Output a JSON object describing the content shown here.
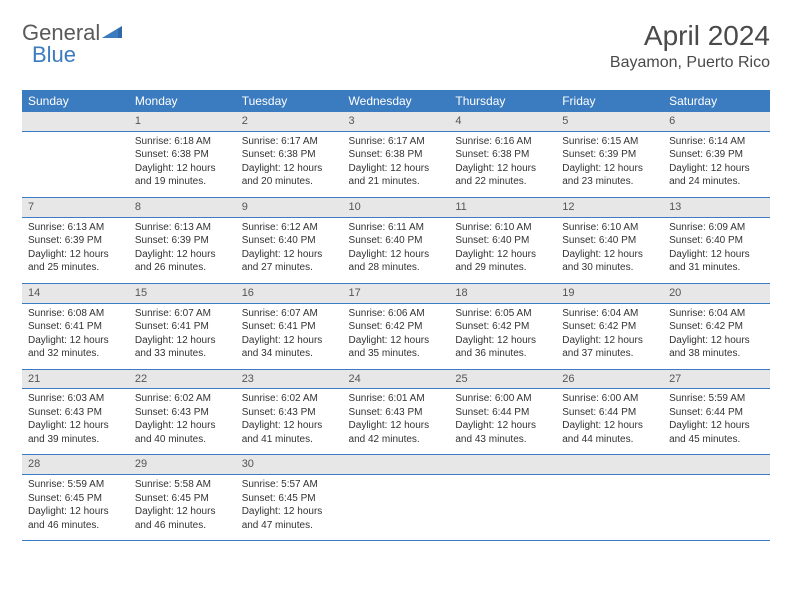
{
  "logo": {
    "text1": "General",
    "text2": "Blue"
  },
  "title": "April 2024",
  "location": "Bayamon, Puerto Rico",
  "colors": {
    "header_bg": "#3b7bbf",
    "header_text": "#ffffff",
    "daynum_bg": "#e7e7e7",
    "border": "#3b7bbf",
    "text": "#333333",
    "logo_gray": "#5a5a5a",
    "logo_blue": "#3b7bbf"
  },
  "weekdays": [
    "Sunday",
    "Monday",
    "Tuesday",
    "Wednesday",
    "Thursday",
    "Friday",
    "Saturday"
  ],
  "weeks": [
    {
      "nums": [
        "",
        "1",
        "2",
        "3",
        "4",
        "5",
        "6"
      ],
      "cells": [
        [],
        [
          "Sunrise: 6:18 AM",
          "Sunset: 6:38 PM",
          "Daylight: 12 hours and 19 minutes."
        ],
        [
          "Sunrise: 6:17 AM",
          "Sunset: 6:38 PM",
          "Daylight: 12 hours and 20 minutes."
        ],
        [
          "Sunrise: 6:17 AM",
          "Sunset: 6:38 PM",
          "Daylight: 12 hours and 21 minutes."
        ],
        [
          "Sunrise: 6:16 AM",
          "Sunset: 6:38 PM",
          "Daylight: 12 hours and 22 minutes."
        ],
        [
          "Sunrise: 6:15 AM",
          "Sunset: 6:39 PM",
          "Daylight: 12 hours and 23 minutes."
        ],
        [
          "Sunrise: 6:14 AM",
          "Sunset: 6:39 PM",
          "Daylight: 12 hours and 24 minutes."
        ]
      ]
    },
    {
      "nums": [
        "7",
        "8",
        "9",
        "10",
        "11",
        "12",
        "13"
      ],
      "cells": [
        [
          "Sunrise: 6:13 AM",
          "Sunset: 6:39 PM",
          "Daylight: 12 hours and 25 minutes."
        ],
        [
          "Sunrise: 6:13 AM",
          "Sunset: 6:39 PM",
          "Daylight: 12 hours and 26 minutes."
        ],
        [
          "Sunrise: 6:12 AM",
          "Sunset: 6:40 PM",
          "Daylight: 12 hours and 27 minutes."
        ],
        [
          "Sunrise: 6:11 AM",
          "Sunset: 6:40 PM",
          "Daylight: 12 hours and 28 minutes."
        ],
        [
          "Sunrise: 6:10 AM",
          "Sunset: 6:40 PM",
          "Daylight: 12 hours and 29 minutes."
        ],
        [
          "Sunrise: 6:10 AM",
          "Sunset: 6:40 PM",
          "Daylight: 12 hours and 30 minutes."
        ],
        [
          "Sunrise: 6:09 AM",
          "Sunset: 6:40 PM",
          "Daylight: 12 hours and 31 minutes."
        ]
      ]
    },
    {
      "nums": [
        "14",
        "15",
        "16",
        "17",
        "18",
        "19",
        "20"
      ],
      "cells": [
        [
          "Sunrise: 6:08 AM",
          "Sunset: 6:41 PM",
          "Daylight: 12 hours and 32 minutes."
        ],
        [
          "Sunrise: 6:07 AM",
          "Sunset: 6:41 PM",
          "Daylight: 12 hours and 33 minutes."
        ],
        [
          "Sunrise: 6:07 AM",
          "Sunset: 6:41 PM",
          "Daylight: 12 hours and 34 minutes."
        ],
        [
          "Sunrise: 6:06 AM",
          "Sunset: 6:42 PM",
          "Daylight: 12 hours and 35 minutes."
        ],
        [
          "Sunrise: 6:05 AM",
          "Sunset: 6:42 PM",
          "Daylight: 12 hours and 36 minutes."
        ],
        [
          "Sunrise: 6:04 AM",
          "Sunset: 6:42 PM",
          "Daylight: 12 hours and 37 minutes."
        ],
        [
          "Sunrise: 6:04 AM",
          "Sunset: 6:42 PM",
          "Daylight: 12 hours and 38 minutes."
        ]
      ]
    },
    {
      "nums": [
        "21",
        "22",
        "23",
        "24",
        "25",
        "26",
        "27"
      ],
      "cells": [
        [
          "Sunrise: 6:03 AM",
          "Sunset: 6:43 PM",
          "Daylight: 12 hours and 39 minutes."
        ],
        [
          "Sunrise: 6:02 AM",
          "Sunset: 6:43 PM",
          "Daylight: 12 hours and 40 minutes."
        ],
        [
          "Sunrise: 6:02 AM",
          "Sunset: 6:43 PM",
          "Daylight: 12 hours and 41 minutes."
        ],
        [
          "Sunrise: 6:01 AM",
          "Sunset: 6:43 PM",
          "Daylight: 12 hours and 42 minutes."
        ],
        [
          "Sunrise: 6:00 AM",
          "Sunset: 6:44 PM",
          "Daylight: 12 hours and 43 minutes."
        ],
        [
          "Sunrise: 6:00 AM",
          "Sunset: 6:44 PM",
          "Daylight: 12 hours and 44 minutes."
        ],
        [
          "Sunrise: 5:59 AM",
          "Sunset: 6:44 PM",
          "Daylight: 12 hours and 45 minutes."
        ]
      ]
    },
    {
      "nums": [
        "28",
        "29",
        "30",
        "",
        "",
        "",
        ""
      ],
      "cells": [
        [
          "Sunrise: 5:59 AM",
          "Sunset: 6:45 PM",
          "Daylight: 12 hours and 46 minutes."
        ],
        [
          "Sunrise: 5:58 AM",
          "Sunset: 6:45 PM",
          "Daylight: 12 hours and 46 minutes."
        ],
        [
          "Sunrise: 5:57 AM",
          "Sunset: 6:45 PM",
          "Daylight: 12 hours and 47 minutes."
        ],
        [],
        [],
        [],
        []
      ]
    }
  ]
}
